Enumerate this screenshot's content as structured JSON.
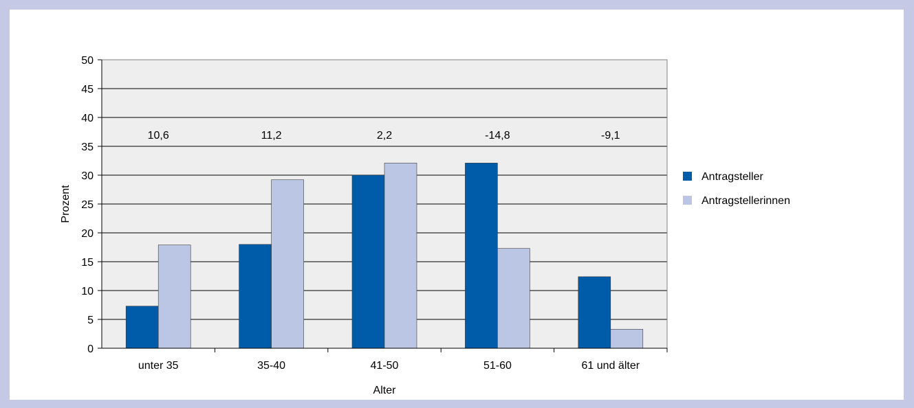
{
  "chart_data": {
    "type": "bar",
    "title": "",
    "xlabel": "Alter",
    "ylabel": "Prozent",
    "ylim": [
      0,
      50
    ],
    "yticks": [
      0,
      5,
      10,
      15,
      20,
      25,
      30,
      35,
      40,
      45,
      50
    ],
    "grid": true,
    "legend_position": "right",
    "categories": [
      "unter 35",
      "35-40",
      "41-50",
      "51-60",
      "61 und älter"
    ],
    "series": [
      {
        "name": "Antragsteller",
        "color": "#005ca9",
        "values": [
          7.3,
          18.0,
          30.0,
          32.1,
          12.4
        ]
      },
      {
        "name": "Antragstellerinnen",
        "color": "#bbc6e5",
        "values": [
          17.9,
          29.2,
          32.1,
          17.3,
          3.3
        ]
      }
    ],
    "annotations": [
      "10,6",
      "11,2",
      "2,2",
      "-14,8",
      "-9,1"
    ],
    "colors": {
      "plot_background": "#eeeeee",
      "gridline": "#000000",
      "frame": "#c6c9e6"
    }
  }
}
